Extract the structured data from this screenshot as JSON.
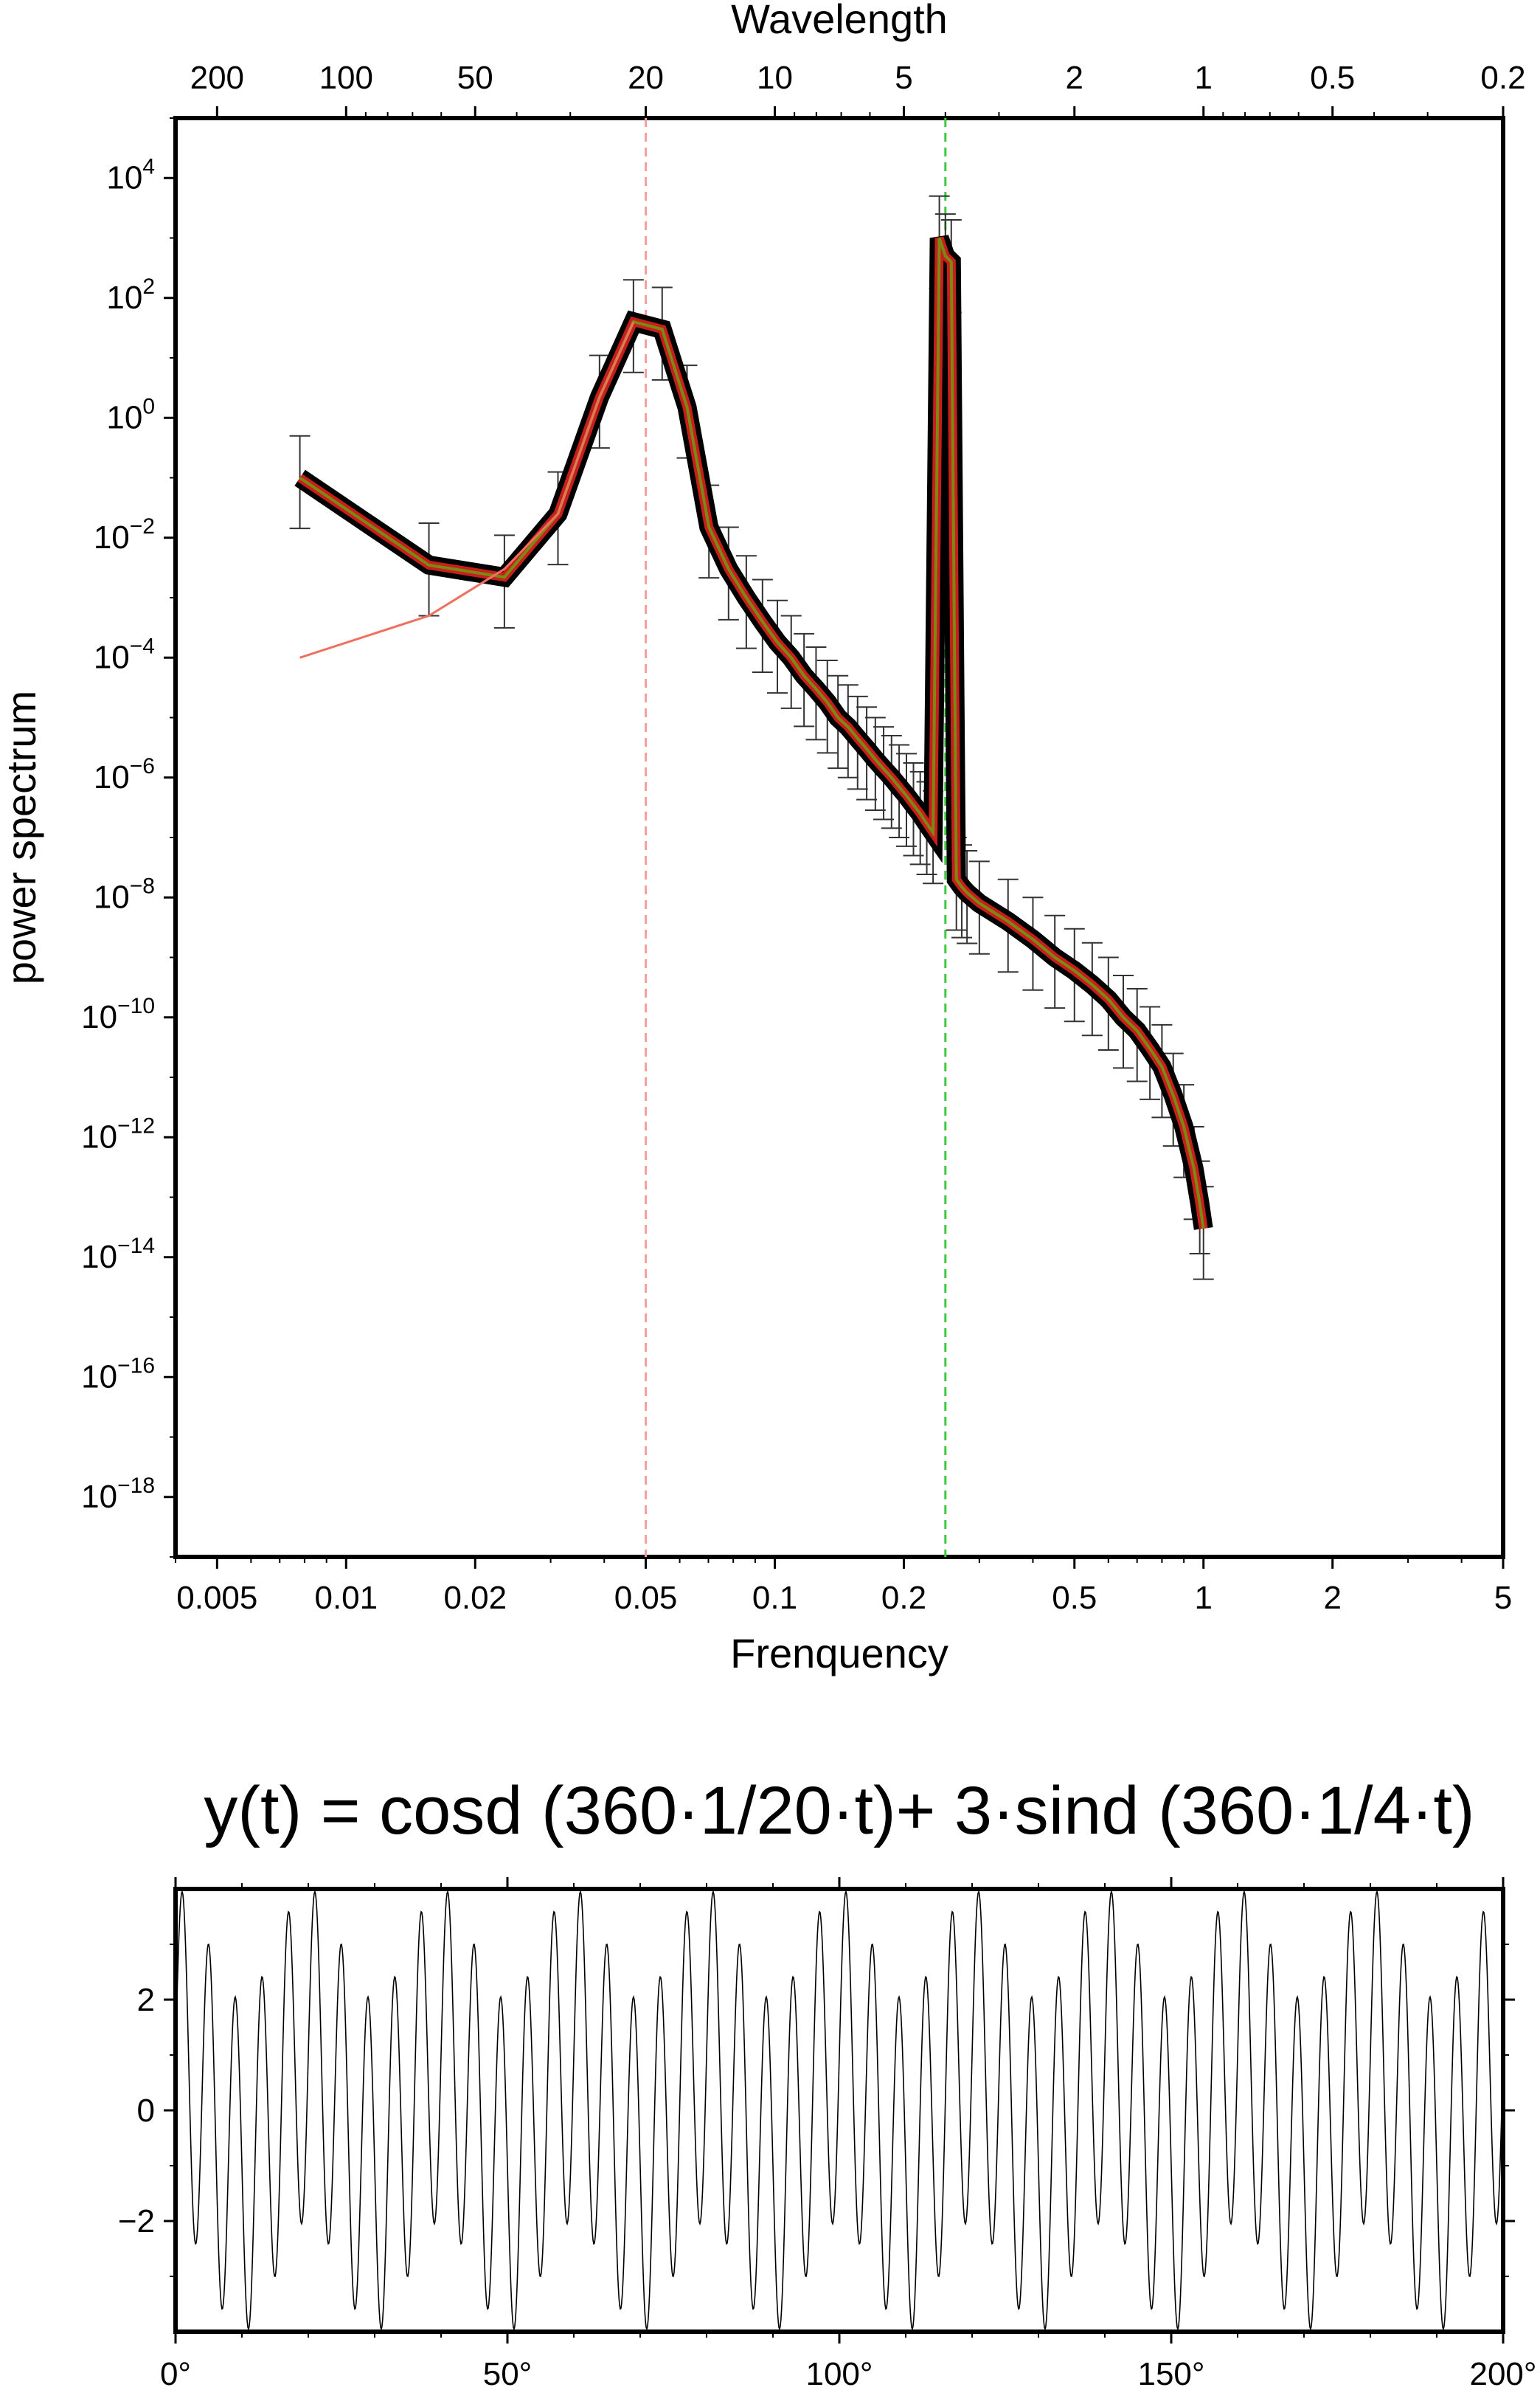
{
  "chart_data": [
    {
      "type": "line",
      "xscale": "log",
      "yscale": "log",
      "xlabel": "Frenquency",
      "ylabel": "power spectrum",
      "x2label": "Wavelength",
      "xlim": [
        0.004,
        5
      ],
      "ylim": [
        1e-19,
        100000.0
      ],
      "x_ticks": [
        {
          "value": 0.005,
          "label": "0.005"
        },
        {
          "value": 0.01,
          "label": "0.01"
        },
        {
          "value": 0.02,
          "label": "0.02"
        },
        {
          "value": 0.05,
          "label": "0.05"
        },
        {
          "value": 0.1,
          "label": "0.1"
        },
        {
          "value": 0.2,
          "label": "0.2"
        },
        {
          "value": 0.5,
          "label": "0.5"
        },
        {
          "value": 1,
          "label": "1"
        },
        {
          "value": 2,
          "label": "2"
        },
        {
          "value": 5,
          "label": "5"
        }
      ],
      "x2_ticks": [
        {
          "value": 200,
          "label": "200"
        },
        {
          "value": 100,
          "label": "100"
        },
        {
          "value": 50,
          "label": "50"
        },
        {
          "value": 20,
          "label": "20"
        },
        {
          "value": 10,
          "label": "10"
        },
        {
          "value": 5,
          "label": "5"
        },
        {
          "value": 2,
          "label": "2"
        },
        {
          "value": 1,
          "label": "1"
        },
        {
          "value": 0.5,
          "label": "0.5"
        },
        {
          "value": 0.2,
          "label": "0.2"
        }
      ],
      "y_ticks": [
        {
          "value": 10000.0,
          "base": "10",
          "exp": "4"
        },
        {
          "value": 100.0,
          "base": "10",
          "exp": "2"
        },
        {
          "value": 1.0,
          "base": "10",
          "exp": "0"
        },
        {
          "value": 0.01,
          "base": "10",
          "exp": "−2"
        },
        {
          "value": 0.0001,
          "base": "10",
          "exp": "−4"
        },
        {
          "value": 1e-06,
          "base": "10",
          "exp": "−6"
        },
        {
          "value": 1e-08,
          "base": "10",
          "exp": "−8"
        },
        {
          "value": 1e-10,
          "base": "10",
          "exp": "−10"
        },
        {
          "value": 1e-12,
          "base": "10",
          "exp": "−12"
        },
        {
          "value": 1e-14,
          "base": "10",
          "exp": "−14"
        },
        {
          "value": 1e-16,
          "base": "10",
          "exp": "−16"
        },
        {
          "value": 1e-18,
          "base": "10",
          "exp": "−18"
        }
      ],
      "reference_lines": [
        {
          "x": 0.05,
          "color": "#f4a0a0",
          "style": "dashed"
        },
        {
          "x": 0.25,
          "color": "#40c840",
          "style": "dashed"
        }
      ],
      "series": [
        {
          "color": "#000000",
          "style": "thick line with error bars",
          "x": [
            0.0078,
            0.0156,
            0.0234,
            0.0312,
            0.039,
            0.0468,
            0.0546,
            0.0624,
            0.0702,
            0.078,
            0.0858,
            0.0936,
            0.1014,
            0.1092,
            0.117,
            0.1248,
            0.1326,
            0.1404,
            0.1482,
            0.156,
            0.1638,
            0.1716,
            0.1794,
            0.1872,
            0.195,
            0.2028,
            0.2106,
            0.2184,
            0.2262,
            0.234,
            0.242,
            0.25,
            0.258,
            0.2652,
            0.273,
            0.2808,
            0.3,
            0.35,
            0.4,
            0.45,
            0.5,
            0.55,
            0.6,
            0.65,
            0.7,
            0.75,
            0.8,
            0.85,
            0.9,
            0.95,
            0.98,
            1.0
          ],
          "y": [
            0.1,
            0.0035,
            0.0022,
            0.025,
            2.2,
            40,
            30,
            1.5,
            0.015,
            0.003,
            0.001,
            0.0004,
            0.00018,
            0.0001,
            5e-05,
            3e-05,
            1.8e-05,
            1e-05,
            7e-06,
            4.5e-06,
            3e-06,
            2e-06,
            1.4e-06,
            1e-06,
            7e-07,
            5e-07,
            3.5e-07,
            2.5e-07,
            1.7e-07,
            1.2e-07,
            1000,
            500,
            400,
            2e-08,
            1.5e-08,
            1.2e-08,
            8e-09,
            4e-09,
            2e-09,
            1e-09,
            6e-10,
            3.5e-10,
            2e-10,
            1e-10,
            6e-11,
            3e-11,
            1.5e-11,
            5e-12,
            1.5e-12,
            3e-13,
            8e-14,
            3e-14
          ]
        },
        {
          "color": "#f07060",
          "style": "thin line",
          "x": [
            0.0078,
            0.0156,
            0.0234,
            0.0312,
            0.039,
            0.0468
          ],
          "y": [
            0.0001,
            0.0005,
            0.003,
            0.025,
            2.2,
            40
          ]
        }
      ]
    },
    {
      "type": "line",
      "title": "y(t) = cosd (360·1/20·t)+ 3·sind (360·1/4·t)",
      "xlim": [
        0,
        200
      ],
      "ylim": [
        -4,
        4
      ],
      "x_ticks": [
        {
          "value": 0,
          "label": "0°"
        },
        {
          "value": 50,
          "label": "50°"
        },
        {
          "value": 100,
          "label": "100°"
        },
        {
          "value": 150,
          "label": "150°"
        },
        {
          "value": 200,
          "label": "200°"
        }
      ],
      "y_ticks": [
        {
          "value": 2,
          "label": "2"
        },
        {
          "value": 0,
          "label": "0"
        },
        {
          "value": -2,
          "label": "−2"
        }
      ],
      "function": {
        "a_amp": 1,
        "a_period": 20,
        "b_amp": 3,
        "b_period": 4,
        "t_step": 0.1
      },
      "series": [
        {
          "color": "#000000",
          "style": "thin line"
        }
      ]
    }
  ]
}
